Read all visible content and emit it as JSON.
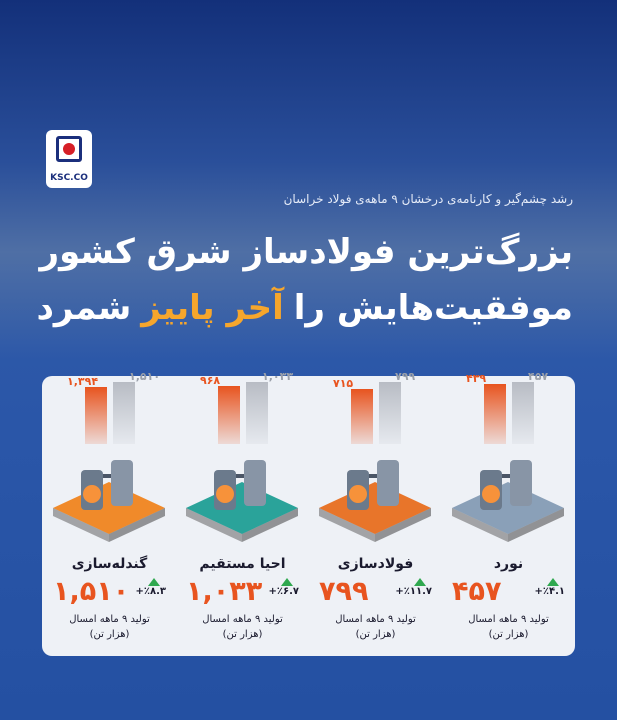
{
  "logo": {
    "text": "KSC.CO"
  },
  "subtitle": "رشد چشم‌گیر و کارنامه‌ی درخشان ۹ ماهه‌ی فولاد خراسان",
  "title": {
    "line1": "بزرگ‌ترین فولادساز شرق کشور",
    "line2_start": "موفقیت‌هایش را",
    "line2_highlight": "آخر پاییز",
    "line2_end": "شمرد"
  },
  "cards": [
    {
      "name": "نورد",
      "previous": {
        "value": 439,
        "label": "۴۳۹"
      },
      "current": {
        "value": 457,
        "label": "۴۵۷"
      },
      "growth": "+٪۴.۱",
      "note": "تولید ۹ ماهه امسال",
      "unit": "(هزار تن)"
    },
    {
      "name": "فولادسازی",
      "previous": {
        "value": 715,
        "label": "۷۱۵"
      },
      "current": {
        "value": 799,
        "label": "۷۹۹"
      },
      "growth": "+٪۱۱.۷",
      "note": "تولید ۹ ماهه امسال",
      "unit": "(هزار تن)"
    },
    {
      "name": "احیا مستقیم",
      "previous": {
        "value": 968,
        "label": "۹۶۸"
      },
      "current": {
        "value": 1033,
        "label": "۱,۰۳۳"
      },
      "growth": "+٪۶.۷",
      "note": "تولید ۹ ماهه امسال",
      "unit": "(هزار تن)"
    },
    {
      "name": "گندله‌سازی",
      "previous": {
        "value": 1394,
        "label": "۱,۳۹۴"
      },
      "current": {
        "value": 1510,
        "label": "۱,۵۱۰"
      },
      "growth": "+٪۸.۳",
      "note": "تولید ۹ ماهه امسال",
      "unit": "(هزار تن)"
    }
  ]
}
